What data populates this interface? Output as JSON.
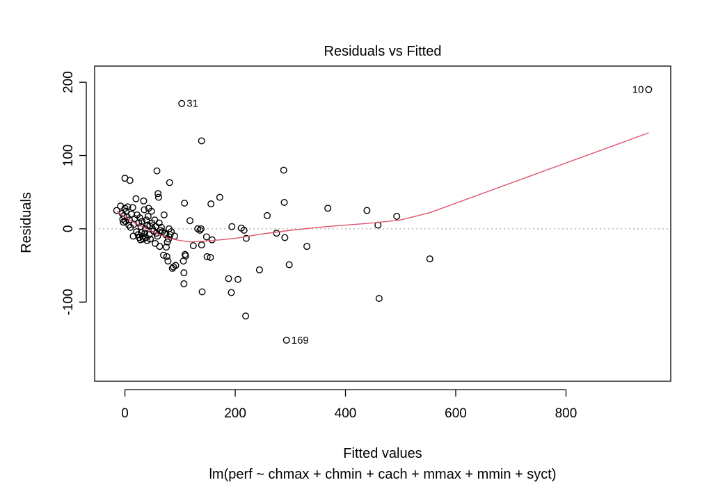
{
  "chart_data": {
    "type": "scatter",
    "title": "Residuals vs Fitted",
    "xlabel": "Fitted values",
    "subtitle": "lm(perf ~ chmax + chmin + cach + mmax + mmin + syct)",
    "ylabel": "Residuals",
    "xlim": [
      -55,
      990
    ],
    "ylim": [
      -208,
      222
    ],
    "x_ticks": [
      0,
      200,
      400,
      600,
      800
    ],
    "y_ticks": [
      -100,
      0,
      100,
      200
    ],
    "zero_line": true,
    "grid": false,
    "point_labels": [
      {
        "text": "10",
        "x": 950,
        "y": 190
      },
      {
        "text": "31",
        "x": 103,
        "y": 171
      },
      {
        "text": "169",
        "x": 293,
        "y": -152
      }
    ],
    "points": [
      {
        "x": -15,
        "y": 25
      },
      {
        "x": -8,
        "y": 31
      },
      {
        "x": -5,
        "y": 21
      },
      {
        "x": -4,
        "y": 13
      },
      {
        "x": -3,
        "y": 9
      },
      {
        "x": -2,
        "y": 18
      },
      {
        "x": 0,
        "y": 69
      },
      {
        "x": 0,
        "y": 28
      },
      {
        "x": 1,
        "y": 10
      },
      {
        "x": 2,
        "y": 24
      },
      {
        "x": 4,
        "y": 16
      },
      {
        "x": 5,
        "y": 30
      },
      {
        "x": 7,
        "y": 5
      },
      {
        "x": 8,
        "y": 12
      },
      {
        "x": 9,
        "y": 66
      },
      {
        "x": 10,
        "y": 2
      },
      {
        "x": 12,
        "y": 20
      },
      {
        "x": 14,
        "y": 29
      },
      {
        "x": 15,
        "y": -10
      },
      {
        "x": 16,
        "y": 6
      },
      {
        "x": 18,
        "y": 14
      },
      {
        "x": 20,
        "y": 41
      },
      {
        "x": 21,
        "y": -4
      },
      {
        "x": 22,
        "y": 19
      },
      {
        "x": 24,
        "y": -8
      },
      {
        "x": 25,
        "y": 8
      },
      {
        "x": 26,
        "y": -12
      },
      {
        "x": 27,
        "y": 15
      },
      {
        "x": 28,
        "y": -15
      },
      {
        "x": 29,
        "y": 3
      },
      {
        "x": 30,
        "y": -5
      },
      {
        "x": 31,
        "y": 10
      },
      {
        "x": 32,
        "y": -10
      },
      {
        "x": 33,
        "y": -14
      },
      {
        "x": 34,
        "y": 38
      },
      {
        "x": 35,
        "y": 26
      },
      {
        "x": 36,
        "y": -6
      },
      {
        "x": 37,
        "y": 0
      },
      {
        "x": 38,
        "y": -12
      },
      {
        "x": 39,
        "y": 12
      },
      {
        "x": 40,
        "y": -16
      },
      {
        "x": 41,
        "y": 5
      },
      {
        "x": 42,
        "y": 17
      },
      {
        "x": 43,
        "y": 28
      },
      {
        "x": 44,
        "y": -8
      },
      {
        "x": 45,
        "y": 4
      },
      {
        "x": 46,
        "y": -14
      },
      {
        "x": 48,
        "y": 24
      },
      {
        "x": 49,
        "y": 8
      },
      {
        "x": 50,
        "y": 0
      },
      {
        "x": 52,
        "y": -3
      },
      {
        "x": 54,
        "y": 12
      },
      {
        "x": 55,
        "y": -20
      },
      {
        "x": 56,
        "y": 3
      },
      {
        "x": 57,
        "y": -6
      },
      {
        "x": 58,
        "y": 79
      },
      {
        "x": 59,
        "y": -10
      },
      {
        "x": 60,
        "y": 48
      },
      {
        "x": 61,
        "y": 43
      },
      {
        "x": 62,
        "y": 8
      },
      {
        "x": 63,
        "y": -24
      },
      {
        "x": 64,
        "y": -2
      },
      {
        "x": 66,
        "y": 2
      },
      {
        "x": 68,
        "y": -4
      },
      {
        "x": 70,
        "y": -36
      },
      {
        "x": 71,
        "y": 19
      },
      {
        "x": 72,
        "y": -6
      },
      {
        "x": 74,
        "y": -8
      },
      {
        "x": 75,
        "y": -25
      },
      {
        "x": 76,
        "y": -38
      },
      {
        "x": 77,
        "y": -18
      },
      {
        "x": 78,
        "y": -44
      },
      {
        "x": 79,
        "y": -14
      },
      {
        "x": 80,
        "y": 0
      },
      {
        "x": 81,
        "y": 63
      },
      {
        "x": 82,
        "y": -8
      },
      {
        "x": 84,
        "y": -4
      },
      {
        "x": 86,
        "y": -54
      },
      {
        "x": 88,
        "y": -52
      },
      {
        "x": 90,
        "y": -10
      },
      {
        "x": 92,
        "y": -50
      },
      {
        "x": 103,
        "y": 171
      },
      {
        "x": 106,
        "y": -44
      },
      {
        "x": 107,
        "y": -60
      },
      {
        "x": 107,
        "y": -75
      },
      {
        "x": 108,
        "y": 35
      },
      {
        "x": 109,
        "y": -35
      },
      {
        "x": 110,
        "y": -37
      },
      {
        "x": 118,
        "y": 11
      },
      {
        "x": 124,
        "y": -23
      },
      {
        "x": 132,
        "y": 0
      },
      {
        "x": 136,
        "y": -2
      },
      {
        "x": 138,
        "y": 0
      },
      {
        "x": 139,
        "y": -22
      },
      {
        "x": 139,
        "y": 120
      },
      {
        "x": 140,
        "y": -86
      },
      {
        "x": 148,
        "y": -11
      },
      {
        "x": 149,
        "y": -38
      },
      {
        "x": 155,
        "y": -39
      },
      {
        "x": 156,
        "y": 34
      },
      {
        "x": 158,
        "y": -15
      },
      {
        "x": 172,
        "y": 43
      },
      {
        "x": 188,
        "y": -68
      },
      {
        "x": 193,
        "y": -87
      },
      {
        "x": 194,
        "y": 3
      },
      {
        "x": 205,
        "y": -69
      },
      {
        "x": 211,
        "y": 1
      },
      {
        "x": 216,
        "y": -2
      },
      {
        "x": 219,
        "y": -119
      },
      {
        "x": 220,
        "y": -13
      },
      {
        "x": 244,
        "y": -56
      },
      {
        "x": 258,
        "y": 18
      },
      {
        "x": 275,
        "y": -6
      },
      {
        "x": 288,
        "y": 80
      },
      {
        "x": 289,
        "y": 36
      },
      {
        "x": 290,
        "y": -12
      },
      {
        "x": 293,
        "y": -152
      },
      {
        "x": 298,
        "y": -49
      },
      {
        "x": 330,
        "y": -24
      },
      {
        "x": 368,
        "y": 28
      },
      {
        "x": 439,
        "y": 25
      },
      {
        "x": 459,
        "y": 5
      },
      {
        "x": 461,
        "y": -95
      },
      {
        "x": 493,
        "y": 17
      },
      {
        "x": 553,
        "y": -41
      },
      {
        "x": 950,
        "y": 190
      }
    ],
    "smooth": {
      "name": "",
      "color": "#DF536B",
      "x": [
        -15,
        0,
        20,
        40,
        60,
        80,
        100,
        120,
        140,
        160,
        200,
        250,
        300,
        350,
        400,
        450,
        500,
        553,
        950
      ],
      "y": [
        24,
        16,
        7,
        0,
        -7,
        -13,
        -16,
        -18,
        -17,
        -16,
        -13,
        -7,
        -2,
        2,
        5,
        8,
        12,
        22,
        131
      ]
    }
  }
}
